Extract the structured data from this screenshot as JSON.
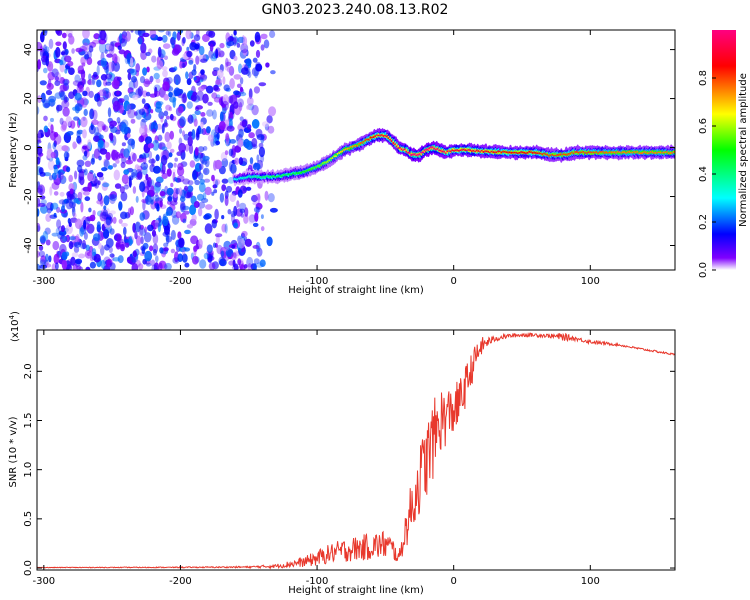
{
  "title": "GN03.2023.240.08.13.R02",
  "chart_data": [
    {
      "type": "heatmap",
      "xlabel": "Height of straight line (km)",
      "ylabel": "Frequency (Hz)",
      "xlim": [
        -305,
        162
      ],
      "ylim": [
        -50,
        48
      ],
      "xticks": [
        -300,
        -200,
        -100,
        0,
        100
      ],
      "yticks": [
        -40,
        -20,
        0,
        20,
        40
      ],
      "xtick_labels": [
        "-300",
        "-200",
        "-100",
        "0",
        "100"
      ],
      "ytick_labels": [
        "-40",
        "-20",
        "0",
        "20",
        "40"
      ],
      "colorbar": {
        "label": "Normalized spectral amplitude",
        "range": [
          0,
          1
        ],
        "ticks": [
          0.0,
          0.2,
          0.4,
          0.6,
          0.8
        ],
        "tick_labels": [
          "0.0",
          "0.2",
          "0.4",
          "0.6",
          "0.8"
        ],
        "colors": [
          "#ffffff",
          "#8000ff",
          "#0000ff",
          "#00ffff",
          "#00ff00",
          "#ffff00",
          "#ff8000",
          "#ff0000",
          "#ff0080"
        ]
      },
      "noise_region": {
        "x_from": -305,
        "x_to": -130,
        "amplitude": 0.25
      },
      "ridge": {
        "x": [
          -160,
          -150,
          -140,
          -130,
          -120,
          -110,
          -100,
          -90,
          -80,
          -70,
          -60,
          -55,
          -50,
          -45,
          -40,
          -35,
          -30,
          -25,
          -20,
          -15,
          -10,
          -5,
          0,
          10,
          20,
          40,
          60,
          70,
          80,
          90,
          100,
          120,
          140,
          162
        ],
        "y": [
          -13,
          -12,
          -12,
          -12,
          -11,
          -10,
          -8,
          -5,
          -1,
          1,
          4,
          5,
          5,
          3,
          0,
          -1,
          -3,
          -3,
          -1,
          0,
          -1,
          -2,
          -1,
          -1,
          -1.5,
          -2,
          -2,
          -3,
          -3,
          -2,
          -2,
          -2,
          -2,
          -2
        ],
        "amplitude": [
          0.3,
          0.35,
          0.4,
          0.45,
          0.45,
          0.5,
          0.55,
          0.6,
          0.7,
          0.75,
          0.85,
          0.9,
          0.9,
          0.9,
          0.95,
          0.95,
          1.0,
          1.0,
          1.0,
          1.0,
          0.95,
          0.95,
          0.9,
          0.9,
          0.9,
          0.85,
          0.85,
          0.8,
          0.8,
          0.8,
          0.8,
          0.75,
          0.75,
          0.75
        ]
      }
    },
    {
      "type": "line",
      "xlabel": "Height of straight line (km)",
      "ylabel": "SNR (10 * v/v)",
      "scale_label": "(x10",
      "scale_exp": "4",
      "scale_close": ")",
      "xlim": [
        -305,
        162
      ],
      "ylim": [
        -0.02,
        2.42
      ],
      "xticks": [
        -300,
        -200,
        -100,
        0,
        100
      ],
      "yticks": [
        0.0,
        0.5,
        1.0,
        1.5,
        2.0
      ],
      "xtick_labels": [
        "-300",
        "-200",
        "-100",
        "0",
        "100"
      ],
      "ytick_labels": [
        "0.0",
        "0.5",
        "1.0",
        "1.5",
        "2.0"
      ],
      "color": "#e8382c",
      "series": [
        {
          "x": [
            -305,
            -250,
            -200,
            -150,
            -130,
            -110,
            -100,
            -90,
            -80,
            -70,
            -60,
            -50,
            -45,
            -40,
            -35,
            -30,
            -25,
            -20,
            -15,
            -10,
            -5,
            0,
            5,
            10,
            15,
            20,
            25,
            30,
            40,
            50,
            60,
            70,
            80,
            90,
            100,
            120,
            140,
            162
          ],
          "values": [
            0.005,
            0.006,
            0.007,
            0.01,
            0.02,
            0.06,
            0.1,
            0.15,
            0.18,
            0.2,
            0.22,
            0.24,
            0.2,
            0.1,
            0.4,
            0.65,
            0.9,
            1.1,
            1.3,
            1.5,
            1.55,
            1.6,
            1.7,
            1.9,
            2.1,
            2.25,
            2.3,
            2.33,
            2.36,
            2.37,
            2.37,
            2.36,
            2.35,
            2.33,
            2.3,
            2.27,
            2.22,
            2.17
          ],
          "noise": [
            0.003,
            0.004,
            0.005,
            0.008,
            0.02,
            0.05,
            0.08,
            0.1,
            0.12,
            0.13,
            0.14,
            0.15,
            0.12,
            0.06,
            0.2,
            0.3,
            0.35,
            0.4,
            0.4,
            0.35,
            0.3,
            0.25,
            0.25,
            0.2,
            0.15,
            0.1,
            0.05,
            0.03,
            0.02,
            0.02,
            0.02,
            0.02,
            0.04,
            0.02,
            0.02,
            0.01,
            0.01,
            0.01
          ]
        }
      ]
    }
  ]
}
